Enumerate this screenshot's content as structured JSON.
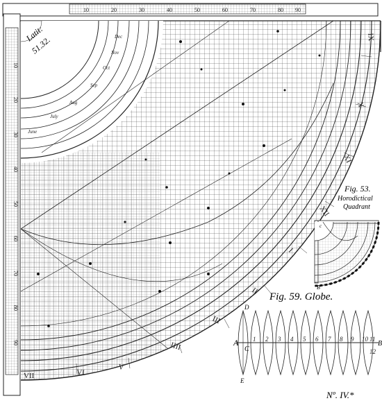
{
  "plate": {
    "latitude_line1": "Latit:",
    "latitude_line2": "51.32.",
    "plate_number": "Nº. IV.*"
  },
  "fig53": {
    "title": "Fig. 53.",
    "subtitle_line1": "Horodictical",
    "subtitle_line2": "Quadrant"
  },
  "fig59": {
    "title": "Fig. 59. Globe.",
    "label_a": "A",
    "label_c": "C",
    "label_d": "D",
    "label_e": "E",
    "label_b": "B",
    "gore_numbers": [
      "1",
      "2",
      "3",
      "4",
      "5",
      "6",
      "7",
      "8",
      "9",
      "10",
      "11",
      "12"
    ]
  },
  "quadrant": {
    "top_scale_labels": [
      "10",
      "20",
      "30",
      "40",
      "50",
      "60",
      "70",
      "80",
      "90"
    ],
    "left_scale_labels": [
      "10",
      "20",
      "30",
      "40",
      "50",
      "60",
      "70",
      "80",
      "90"
    ],
    "month_labels": [
      "Dec",
      "Nov",
      "Oct",
      "Sep",
      "Aug",
      "July",
      "June"
    ],
    "hour_numerals": [
      "IX",
      "X",
      "XI",
      "XII",
      "I",
      "II",
      "III",
      "IIII",
      "V",
      "VI",
      "VII"
    ],
    "small_quadrant_label_b": "B",
    "small_quadrant_label_c": "c"
  }
}
